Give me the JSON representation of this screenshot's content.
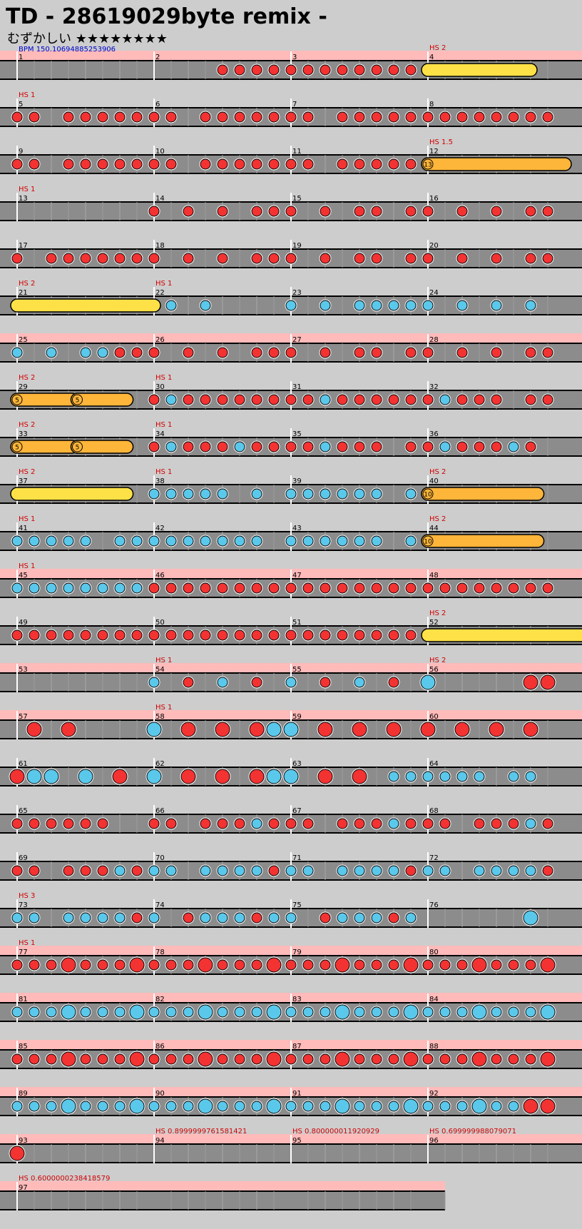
{
  "title": "TD - 28619029byte remix -",
  "difficulty_label": "むずかしい",
  "stars": "★★★★★★★★",
  "bpm_label": "BPM 150.10694885253906",
  "chart_data": {
    "type": "timeline",
    "note_kinds": {
      "r": "don (red)",
      "b": "ka (blue)",
      "R": "big don",
      "B": "big ka"
    },
    "colors": {
      "don": "#f33232",
      "ka": "#5ac8eb",
      "roll": "#fde146",
      "balloon": "#fdb53a",
      "hs_band": "#ffbaba",
      "hs_text": "#d40000",
      "bpm_text": "#0000cc",
      "lane": "#8c8c8c"
    },
    "hs_markers": [
      {
        "measure": 4,
        "text": "HS 2"
      },
      {
        "measure": 5,
        "text": "HS 1"
      },
      {
        "measure": 12,
        "text": "HS 1.5"
      },
      {
        "measure": 13,
        "text": "HS 1"
      },
      {
        "measure": 21,
        "text": "HS 2"
      },
      {
        "measure": 22,
        "text": "HS 1"
      },
      {
        "measure": 29,
        "text": "HS 2"
      },
      {
        "measure": 30,
        "text": "HS 1"
      },
      {
        "measure": 33,
        "text": "HS 2"
      },
      {
        "measure": 34,
        "text": "HS 1"
      },
      {
        "measure": 37,
        "text": "HS 2"
      },
      {
        "measure": 38,
        "text": "HS 1"
      },
      {
        "measure": 40,
        "text": "HS 2"
      },
      {
        "measure": 41,
        "text": "HS 1"
      },
      {
        "measure": 44,
        "text": "HS 2"
      },
      {
        "measure": 45,
        "text": "HS 1"
      },
      {
        "measure": 52,
        "text": "HS 2"
      },
      {
        "measure": 54,
        "text": "HS 1"
      },
      {
        "measure": 56,
        "text": "HS 2"
      },
      {
        "measure": 58,
        "text": "HS 1"
      },
      {
        "measure": 73,
        "text": "HS 3"
      },
      {
        "measure": 77,
        "text": "HS 1"
      },
      {
        "measure": 94,
        "text": "HS 0.8999999761581421"
      },
      {
        "measure": 95,
        "text": "HS 0.800000011920929"
      },
      {
        "measure": 96,
        "text": "HS 0.699999988079071"
      },
      {
        "measure": 97,
        "text": "HS 0.6000000238418579"
      }
    ],
    "pink_rows": [
      0,
      6,
      11,
      13,
      14,
      19,
      20,
      21,
      22,
      23,
      24
    ],
    "measures": [
      {
        "n": 1,
        "notes": ""
      },
      {
        "n": 2,
        "notes": "0000rrrr"
      },
      {
        "n": 3,
        "notes": "rrrrrrrr"
      },
      {
        "n": 4,
        "notes": "",
        "roll": [
          0,
          0.75
        ],
        "roll_type": "roll"
      },
      {
        "n": 5,
        "notes": "rr0rrrrr"
      },
      {
        "n": 6,
        "notes": "rr0rrrrr"
      },
      {
        "n": 7,
        "notes": "rr0rrrrr"
      },
      {
        "n": 8,
        "notes": "rrrrrrrr"
      },
      {
        "n": 9,
        "notes": "rr0rrrrr"
      },
      {
        "n": 10,
        "notes": "rr0rrrrr"
      },
      {
        "n": 11,
        "notes": "rr0rrrrr"
      },
      {
        "n": 12,
        "notes": "",
        "roll": [
          0,
          1
        ],
        "roll_type": "balloon",
        "count": "13"
      },
      {
        "n": 13,
        "notes": ""
      },
      {
        "n": 14,
        "notes": "r0r0r0rr"
      },
      {
        "n": 15,
        "notes": "r0r0rr0r"
      },
      {
        "n": 16,
        "notes": "r0r0r0rr"
      },
      {
        "n": 17,
        "notes": "r0rrrrrr"
      },
      {
        "n": 18,
        "notes": "r0r0r0rr"
      },
      {
        "n": 19,
        "notes": "r0r0rr0r"
      },
      {
        "n": 20,
        "notes": "r0r0r0rr"
      },
      {
        "n": 21,
        "notes": "",
        "roll": [
          0,
          1
        ],
        "roll_type": "roll"
      },
      {
        "n": 22,
        "notes": "0b0b0000"
      },
      {
        "n": 23,
        "notes": "b0b0bbbb"
      },
      {
        "n": 24,
        "notes": "b0b0b0b0"
      },
      {
        "n": 25,
        "notes": "b0b0bbrr"
      },
      {
        "n": 26,
        "notes": "r0r0r0rr"
      },
      {
        "n": 27,
        "notes": "r0r0rr0r"
      },
      {
        "n": 28,
        "notes": "r0r0r0rr"
      },
      {
        "n": 29,
        "notes": "",
        "roll": [
          0,
          0.4
        ],
        "roll_type": "balloon",
        "count": "5",
        "roll2": [
          0.44,
          0.8
        ],
        "count2": "5"
      },
      {
        "n": 30,
        "notes": "rbrrrrrr"
      },
      {
        "n": 31,
        "notes": "rrbrrrrr"
      },
      {
        "n": 32,
        "notes": "rbrrr0rr"
      },
      {
        "n": 33,
        "notes": "",
        "roll": [
          0,
          0.4
        ],
        "roll_type": "balloon",
        "count": "5",
        "roll2": [
          0.44,
          0.8
        ],
        "count2": "5"
      },
      {
        "n": 34,
        "notes": "rbrrrbrr"
      },
      {
        "n": 35,
        "notes": "rrbrrr0r"
      },
      {
        "n": 36,
        "notes": "rbrrrbr0"
      },
      {
        "n": 37,
        "notes": "",
        "roll": [
          0,
          0.8
        ],
        "roll_type": "roll"
      },
      {
        "n": 38,
        "notes": "bbbbb0b0"
      },
      {
        "n": 39,
        "notes": "bbbbbb0b"
      },
      {
        "n": 40,
        "notes": "",
        "roll": [
          0,
          0.8
        ],
        "roll_type": "balloon",
        "count": "10"
      },
      {
        "n": 41,
        "notes": "bbbbb0bb"
      },
      {
        "n": 42,
        "notes": "bbbbbbb0"
      },
      {
        "n": 43,
        "notes": "bbbbbb0b"
      },
      {
        "n": 44,
        "notes": "",
        "roll": [
          0,
          0.8
        ],
        "roll_type": "balloon",
        "count": "10"
      },
      {
        "n": 45,
        "notes": "bbbbbbbb"
      },
      {
        "n": 46,
        "notes": "rrrrrrrr"
      },
      {
        "n": 47,
        "notes": "rrrrrrrr"
      },
      {
        "n": 48,
        "notes": "rrrrrrrr"
      },
      {
        "n": 49,
        "notes": "rrrrrrrr"
      },
      {
        "n": 50,
        "notes": "rrrrrrrr"
      },
      {
        "n": 51,
        "notes": "rrrrrrrr"
      },
      {
        "n": 52,
        "notes": "",
        "roll": [
          0,
          1.7
        ],
        "roll_type": "roll"
      },
      {
        "n": 53,
        "notes": ""
      },
      {
        "n": 54,
        "notes": "b0r0b0r0"
      },
      {
        "n": 55,
        "notes": "b0r0b0r0"
      },
      {
        "n": 56,
        "notes": "B00000RR"
      },
      {
        "n": 57,
        "notes": "0R0R0000"
      },
      {
        "n": 58,
        "notes": "B0R0R0RB"
      },
      {
        "n": 59,
        "notes": "B0R0R0R0"
      },
      {
        "n": 60,
        "notes": "R0R0R0R0"
      },
      {
        "n": 61,
        "notes": "RBB0B0R0"
      },
      {
        "n": 62,
        "notes": "B0R0R0RB"
      },
      {
        "n": 63,
        "notes": "B0R0R0bb"
      },
      {
        "n": 64,
        "notes": "bbbb0bb0"
      },
      {
        "n": 65,
        "notes": "rrrrrr00"
      },
      {
        "n": 66,
        "notes": "rr0rrrbr"
      },
      {
        "n": 67,
        "notes": "rr0rrrbr"
      },
      {
        "n": 68,
        "notes": "rr0rrrbr"
      },
      {
        "n": 69,
        "notes": "rr0rrrbr"
      },
      {
        "n": 70,
        "notes": "bb0bbbbr"
      },
      {
        "n": 71,
        "notes": "bb0bbbbr"
      },
      {
        "n": 72,
        "notes": "bb0bbbbr"
      },
      {
        "n": 73,
        "notes": "bb0bbbbr"
      },
      {
        "n": 74,
        "notes": "b0rbbbrb"
      },
      {
        "n": 75,
        "notes": "b0rbbbrb"
      },
      {
        "n": 76,
        "notes": "000000B0"
      },
      {
        "n": 77,
        "notes": "rrrRrrrR"
      },
      {
        "n": 78,
        "notes": "rrrRrrrR"
      },
      {
        "n": 79,
        "notes": "rrrRrrrR"
      },
      {
        "n": 80,
        "notes": "rrrRrrrR"
      },
      {
        "n": 81,
        "notes": "bbbBbbbB"
      },
      {
        "n": 82,
        "notes": "bbbBbbbB"
      },
      {
        "n": 83,
        "notes": "bbbBbbbB"
      },
      {
        "n": 84,
        "notes": "bbbBbbbB"
      },
      {
        "n": 85,
        "notes": "rrrRrrrR"
      },
      {
        "n": 86,
        "notes": "rrrRrrrR"
      },
      {
        "n": 87,
        "notes": "rrrRrrrR"
      },
      {
        "n": 88,
        "notes": "rrrRrrrR"
      },
      {
        "n": 89,
        "notes": "bbbBbbbB"
      },
      {
        "n": 90,
        "notes": "bbbBbbbB"
      },
      {
        "n": 91,
        "notes": "bbbBbbbB"
      },
      {
        "n": 92,
        "notes": "bbbBbbRR"
      },
      {
        "n": 93,
        "notes": "R0000000"
      },
      {
        "n": 94,
        "notes": ""
      },
      {
        "n": 95,
        "notes": ""
      },
      {
        "n": 96,
        "notes": ""
      },
      {
        "n": 97,
        "notes": ""
      }
    ]
  }
}
